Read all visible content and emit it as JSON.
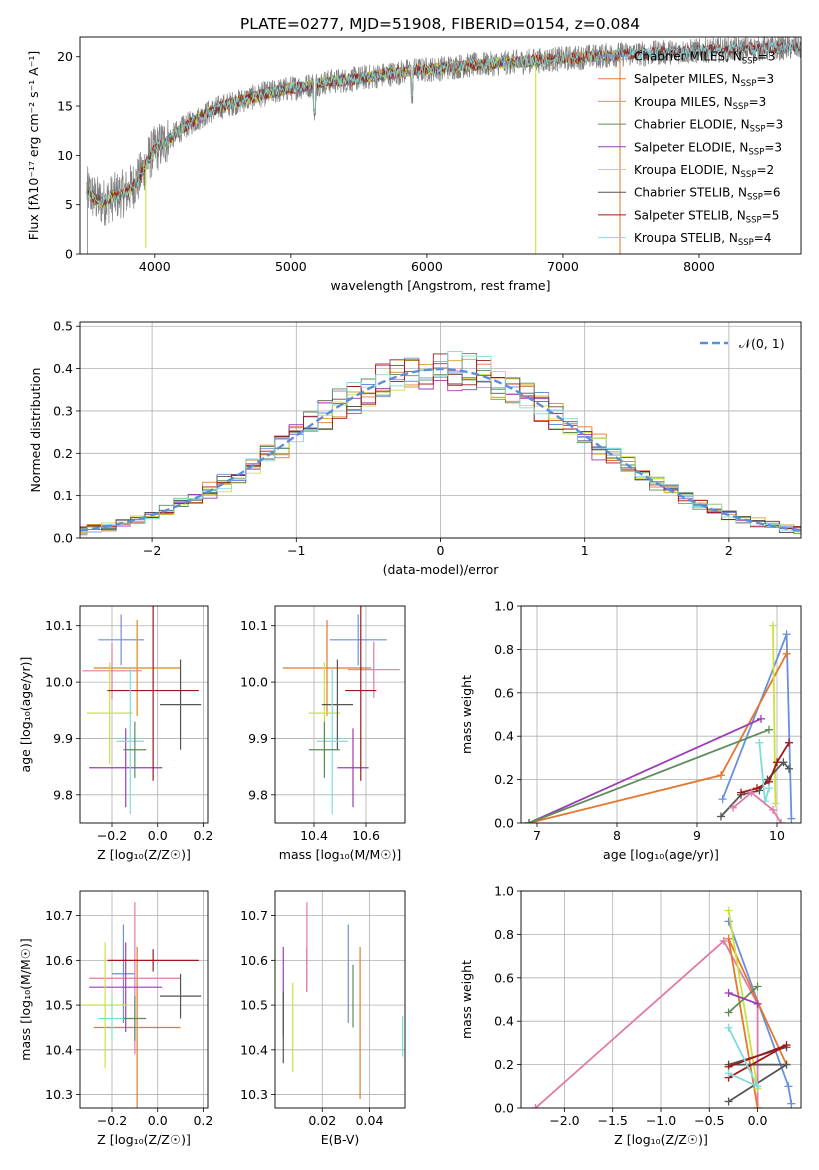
{
  "title": "PLATE=0277, MJD=51908, FIBERID=0154, z=0.084",
  "colors": [
    "#6a8fdc",
    "#e4782e",
    "#d9a02a",
    "#5b8c5a",
    "#9b3db3",
    "#e6e645",
    "#555555",
    "#a01818",
    "#80dcdc"
  ],
  "panel_colors": {
    "chabrier_miles": "#6a8fdc",
    "salpeter_miles": "#e4782e",
    "kroupa_miles": "#d9a02a",
    "chabrier_elodie": "#5b8c5a",
    "salpeter_elodie": "#9b3db3",
    "kroupa_elodie": "#cce23a",
    "chabrier_stelib": "#555555",
    "salpeter_stelib": "#a01818",
    "kroupa_stelib": "#80dcdc",
    "pink": "#e07aa8"
  },
  "legend": [
    {
      "name": "Chabrier MILES",
      "n": "3"
    },
    {
      "name": "Salpeter MILES",
      "n": "3"
    },
    {
      "name": "Kroupa MILES",
      "n": "3"
    },
    {
      "name": "Chabrier ELODIE",
      "n": "3"
    },
    {
      "name": "Salpeter ELODIE",
      "n": "3"
    },
    {
      "name": "Kroupa ELODIE",
      "n": "2"
    },
    {
      "name": "Chabrier STELIB",
      "n": "6"
    },
    {
      "name": "Salpeter STELIB",
      "n": "5"
    },
    {
      "name": "Kroupa STELIB",
      "n": "4"
    }
  ],
  "legend_subscript": "SSP",
  "hist_legend": "𝒩(0, 1)",
  "chart_data": [
    {
      "id": "spectrum",
      "type": "line",
      "xlabel": "wavelength [Angstrom, rest frame]",
      "ylabel": "Flux [fλ10⁻¹⁷ erg cm⁻² s⁻¹ A⁻¹]",
      "xlim": [
        3450,
        8750
      ],
      "ylim": [
        0,
        22
      ],
      "xticks": [
        "4000",
        "5000",
        "6000",
        "7000",
        "8000"
      ],
      "xtick_values": [
        4000,
        5000,
        6000,
        7000,
        8000
      ],
      "yticks": [
        "0",
        "5",
        "10",
        "15",
        "20"
      ],
      "ytick_values": [
        0,
        5,
        10,
        15,
        20
      ],
      "continuum": {
        "x": [
          3500,
          3560,
          3620,
          3700,
          3800,
          3880,
          3960,
          4000,
          4100,
          4200,
          4300,
          4400,
          4500,
          4600,
          4700,
          4800,
          4900,
          5000,
          5100,
          5200,
          5300,
          5400,
          5500,
          5600,
          5700,
          5800,
          5900,
          6000,
          6100,
          6200,
          6300,
          6400,
          6500,
          6600,
          6700,
          6800,
          6900,
          7000,
          7100,
          7200,
          7300,
          7400,
          7500,
          7600,
          7700,
          7800,
          7900,
          8000,
          8200,
          8400,
          8600,
          8750
        ],
        "y": [
          6.5,
          5.6,
          5.2,
          5.8,
          6.3,
          7.6,
          9.8,
          10.6,
          11.6,
          12.7,
          13.6,
          14.4,
          15.0,
          15.4,
          15.8,
          16.2,
          16.5,
          16.8,
          17.0,
          17.3,
          17.5,
          17.6,
          17.8,
          18.0,
          18.2,
          18.4,
          18.6,
          18.7,
          18.8,
          19.0,
          19.1,
          19.2,
          19.3,
          19.4,
          19.5,
          19.6,
          19.7,
          19.8,
          19.9,
          20.0,
          20.1,
          20.2,
          20.3,
          20.3,
          20.4,
          20.5,
          20.5,
          20.6,
          20.7,
          20.8,
          20.9,
          21.0
        ]
      },
      "dips": [
        {
          "x": 3934,
          "to": 0.6,
          "series": "kroupa_elodie"
        },
        {
          "x": 5175,
          "to": 13.5,
          "series": "all"
        },
        {
          "x": 5890,
          "to": 15.2,
          "series": "all"
        },
        {
          "x": 6800,
          "to": 0,
          "series": "kroupa_elodie"
        },
        {
          "x": 7420,
          "to": 0,
          "series": "salpeter_miles"
        }
      ],
      "series": [
        "Chabrier MILES",
        "Salpeter MILES",
        "Kroupa MILES",
        "Chabrier ELODIE",
        "Salpeter ELODIE",
        "Kroupa ELODIE",
        "Chabrier STELIB",
        "Salpeter STELIB",
        "Kroupa STELIB"
      ]
    },
    {
      "id": "residual_hist",
      "type": "bar",
      "xlabel": "(data-model)/error",
      "ylabel": "Normed distribution",
      "xlim": [
        -2.5,
        2.5
      ],
      "ylim": [
        0,
        0.51
      ],
      "xticks": [
        "−2",
        "−1",
        "0",
        "1",
        "2"
      ],
      "xtick_values": [
        -2,
        -1,
        0,
        1,
        2
      ],
      "yticks": [
        "0.0",
        "0.1",
        "0.2",
        "0.3",
        "0.4",
        "0.5"
      ],
      "ytick_values": [
        0,
        0.1,
        0.2,
        0.3,
        0.4,
        0.5
      ],
      "bin_width": 0.1,
      "reference": "Gaussian N(0,1)"
    },
    {
      "id": "age_vs_Z",
      "type": "scatter",
      "xlabel": "Z [log₁₀(Z/Z☉)]",
      "ylabel": "age  [log₁₀(age/yr)]",
      "xlim": [
        -0.34,
        0.22
      ],
      "ylim": [
        9.75,
        10.135
      ],
      "xticks": [
        "−0.2",
        "0.0",
        "0.2"
      ],
      "xtick_values": [
        -0.2,
        0,
        0.2
      ],
      "yticks": [
        "9.8",
        "9.9",
        "10.0",
        "10.1"
      ],
      "ytick_values": [
        9.8,
        9.9,
        10.0,
        10.1
      ],
      "points": [
        {
          "c": "chabrier_miles",
          "x": -0.16,
          "xe": 0.1,
          "y": 10.075,
          "ye": 0.045
        },
        {
          "c": "salpeter_miles",
          "x": -0.09,
          "xe": 0.19,
          "y": 10.025,
          "ye": 0.085
        },
        {
          "c": "kroupa_miles",
          "x": -0.09,
          "xe": 0.19,
          "y": 10.025,
          "ye": 0.085
        },
        {
          "c": "pink",
          "x": -0.2,
          "xe": 0.13,
          "y": 10.02,
          "ye": 0.05
        },
        {
          "c": "salpeter_elodie",
          "x": -0.14,
          "xe": 0.16,
          "y": 9.848,
          "ye": 0.07
        },
        {
          "c": "kroupa_elodie",
          "x": -0.21,
          "xe": 0.1,
          "y": 9.945,
          "ye": 0.09
        },
        {
          "c": "chabrier_stelib",
          "x": 0.1,
          "xe": 0.09,
          "y": 9.96,
          "ye": 0.08
        },
        {
          "c": "salpeter_stelib",
          "x": -0.02,
          "xe": 0.2,
          "y": 9.985,
          "ye": 0.16
        },
        {
          "c": "kroupa_stelib",
          "x": -0.12,
          "xe": 0.06,
          "y": 9.895,
          "ye": 0.13
        },
        {
          "c": "chabrier_elodie",
          "x": -0.1,
          "xe": 0.05,
          "y": 9.88,
          "ye": 0.05
        }
      ]
    },
    {
      "id": "age_vs_mass",
      "type": "scatter",
      "xlabel": "mass [log₁₀(M/M☉)]",
      "ylabel": "",
      "xlim": [
        10.25,
        10.75
      ],
      "ylim": [
        9.75,
        10.135
      ],
      "xticks": [
        "10.4",
        "10.6"
      ],
      "xtick_values": [
        10.4,
        10.6
      ],
      "yticks": [
        "9.8",
        "9.9",
        "10.0",
        "10.1"
      ],
      "ytick_values": [
        9.8,
        9.9,
        10.0,
        10.1
      ],
      "points": [
        {
          "c": "chabrier_miles",
          "x": 10.57,
          "xe": 0.11,
          "y": 10.075,
          "ye": 0.045
        },
        {
          "c": "salpeter_miles",
          "x": 10.45,
          "xe": 0.17,
          "y": 10.025,
          "ye": 0.085
        },
        {
          "c": "pink",
          "x": 10.63,
          "xe": 0.1,
          "y": 10.022,
          "ye": 0.05
        },
        {
          "c": "salpeter_elodie",
          "x": 10.55,
          "xe": 0.06,
          "y": 9.848,
          "ye": 0.07
        },
        {
          "c": "kroupa_elodie",
          "x": 10.44,
          "xe": 0.06,
          "y": 9.945,
          "ye": 0.09
        },
        {
          "c": "chabrier_stelib",
          "x": 10.49,
          "xe": 0.06,
          "y": 9.96,
          "ye": 0.08
        },
        {
          "c": "salpeter_stelib",
          "x": 10.58,
          "xe": 0.06,
          "y": 9.985,
          "ye": 0.16
        },
        {
          "c": "kroupa_stelib",
          "x": 10.47,
          "xe": 0.06,
          "y": 9.895,
          "ye": 0.13
        },
        {
          "c": "chabrier_elodie",
          "x": 10.44,
          "xe": 0.06,
          "y": 9.88,
          "ye": 0.05
        }
      ]
    },
    {
      "id": "massweight_vs_age",
      "type": "line",
      "xlabel": "age  [log₁₀(age/yr)]",
      "ylabel": "mass weight",
      "xlim": [
        6.8,
        10.3
      ],
      "ylim": [
        0,
        1.0
      ],
      "xticks": [
        "7",
        "8",
        "9",
        "10"
      ],
      "xtick_values": [
        7,
        8,
        9,
        10
      ],
      "yticks": [
        "0.0",
        "0.2",
        "0.4",
        "0.6",
        "0.8",
        "1.0"
      ],
      "ytick_values": [
        0,
        0.2,
        0.4,
        0.6,
        0.8,
        1.0
      ],
      "series": [
        {
          "c": "chabrier_miles",
          "x": [
            9.32,
            10.12,
            10.18
          ],
          "y": [
            0.11,
            0.87,
            0.02
          ]
        },
        {
          "c": "salpeter_miles",
          "x": [
            6.9,
            9.3,
            10.12
          ],
          "y": [
            0.0,
            0.22,
            0.78
          ]
        },
        {
          "c": "salpeter_elodie",
          "x": [
            6.9,
            9.8
          ],
          "y": [
            0.0,
            0.48
          ]
        },
        {
          "c": "chabrier_elodie",
          "x": [
            6.9,
            9.9
          ],
          "y": [
            0.0,
            0.43
          ]
        },
        {
          "c": "kroupa_elodie",
          "x": [
            9.95,
            9.98
          ],
          "y": [
            0.91,
            0.09
          ]
        },
        {
          "c": "chabrier_stelib",
          "x": [
            9.3,
            9.55,
            9.78,
            9.88,
            10.08,
            10.15
          ],
          "y": [
            0.03,
            0.13,
            0.15,
            0.2,
            0.28,
            0.25
          ]
        },
        {
          "c": "salpeter_stelib",
          "x": [
            9.55,
            9.75,
            9.9,
            10.0,
            10.15
          ],
          "y": [
            0.14,
            0.16,
            0.19,
            0.28,
            0.37
          ]
        },
        {
          "c": "kroupa_stelib",
          "x": [
            9.78,
            9.85,
            9.9
          ],
          "y": [
            0.37,
            0.1,
            0.16
          ]
        },
        {
          "c": "pink",
          "x": [
            9.45,
            9.68,
            9.95,
            10.05
          ],
          "y": [
            0.07,
            0.14,
            0.06,
            0.0
          ]
        }
      ]
    },
    {
      "id": "mass_vs_Z",
      "type": "scatter",
      "xlabel": "Z [log₁₀(Z/Z☉)]",
      "ylabel": "mass [log₁₀(M/M☉)]",
      "xlim": [
        -0.34,
        0.22
      ],
      "ylim": [
        10.27,
        10.755
      ],
      "xticks": [
        "−0.2",
        "0.0",
        "0.2"
      ],
      "xtick_values": [
        -0.2,
        0,
        0.2
      ],
      "yticks": [
        "10.3",
        "10.4",
        "10.5",
        "10.6",
        "10.7"
      ],
      "ytick_values": [
        10.3,
        10.4,
        10.5,
        10.6,
        10.7
      ],
      "points": [
        {
          "c": "chabrier_miles",
          "x": -0.15,
          "xe": 0.05,
          "y": 10.57,
          "ye": 0.11
        },
        {
          "c": "salpeter_miles",
          "x": -0.09,
          "xe": 0.19,
          "y": 10.45,
          "ye": 0.18
        },
        {
          "c": "pink",
          "x": -0.1,
          "xe": 0.2,
          "y": 10.56,
          "ye": 0.17
        },
        {
          "c": "salpeter_elodie",
          "x": -0.14,
          "xe": 0.16,
          "y": 10.54,
          "ye": 0.1
        },
        {
          "c": "kroupa_elodie",
          "x": -0.23,
          "xe": 0.1,
          "y": 10.5,
          "ye": 0.14
        },
        {
          "c": "chabrier_stelib",
          "x": 0.1,
          "xe": 0.09,
          "y": 10.52,
          "ye": 0.05
        },
        {
          "c": "salpeter_stelib",
          "x": -0.02,
          "xe": 0.2,
          "y": 10.6,
          "ye": 0.025
        },
        {
          "c": "kroupa_stelib",
          "x": -0.2,
          "xe": 0.06,
          "y": 10.47,
          "ye": 0.05
        },
        {
          "c": "chabrier_elodie",
          "x": -0.1,
          "xe": 0.05,
          "y": 10.47,
          "ye": 0.05
        }
      ]
    },
    {
      "id": "mass_vs_ebv",
      "type": "scatter",
      "xlabel": "E(B-V)",
      "ylabel": "",
      "xlim": [
        0.0,
        0.055
      ],
      "ylim": [
        10.27,
        10.755
      ],
      "xticks": [
        "0.02",
        "0.04"
      ],
      "xtick_values": [
        0.02,
        0.04
      ],
      "yticks": [
        "10.3",
        "10.4",
        "10.5",
        "10.6",
        "10.7"
      ],
      "ytick_values": [
        10.3,
        10.4,
        10.5,
        10.6,
        10.7
      ],
      "points": [
        {
          "c": "chabrier_miles",
          "x": 0.031,
          "y": 10.57,
          "ye": 0.11
        },
        {
          "c": "salpeter_miles",
          "x": 0.036,
          "y": 10.46,
          "ye": 0.17
        },
        {
          "c": "salpeter_elodie",
          "x": 0.0035,
          "y": 10.53,
          "ye": 0.1
        },
        {
          "c": "kroupa_elodie",
          "x": 0.0075,
          "y": 10.45,
          "ye": 0.1
        },
        {
          "c": "chabrier_stelib",
          "x": 0.0035,
          "y": 10.45,
          "ye": 0.08
        },
        {
          "c": "salpeter_stelib",
          "x": 0.0135,
          "y": 10.58,
          "ye": 0.05
        },
        {
          "c": "pink",
          "x": 0.0135,
          "y": 10.63,
          "ye": 0.1
        },
        {
          "c": "chabrier_elodie",
          "x": 0.033,
          "y": 10.52,
          "ye": 0.07
        },
        {
          "c": "kroupa_stelib",
          "x": 0.054,
          "y": 10.43,
          "ye": 0.045
        }
      ]
    },
    {
      "id": "massweight_vs_Z",
      "type": "line",
      "xlabel": "Z [log₁₀(Z/Z☉)]",
      "ylabel": "mass weight",
      "xlim": [
        -2.45,
        0.45
      ],
      "ylim": [
        0,
        1.0
      ],
      "xticks": [
        "−2.0",
        "−1.5",
        "−1.0",
        "−0.5",
        "0.0"
      ],
      "xtick_values": [
        -2,
        -1.5,
        -1,
        -0.5,
        0
      ],
      "yticks": [
        "0.0",
        "0.2",
        "0.4",
        "0.6",
        "0.8",
        "1.0"
      ],
      "ytick_values": [
        0,
        0.2,
        0.4,
        0.6,
        0.8,
        1.0
      ],
      "series": [
        {
          "c": "pink",
          "x": [
            -2.3,
            -0.35,
            0.0,
            0.0
          ],
          "y": [
            0.0,
            0.77,
            0.48,
            0.0
          ]
        },
        {
          "c": "chabrier_miles",
          "x": [
            -0.3,
            0.32,
            0.35
          ],
          "y": [
            0.86,
            0.1,
            0.02
          ]
        },
        {
          "c": "salpeter_miles",
          "x": [
            0.0,
            -0.3,
            0.3
          ],
          "y": [
            0.0,
            0.78,
            0.2
          ]
        },
        {
          "c": "kroupa_elodie",
          "x": [
            -0.3,
            0.0
          ],
          "y": [
            0.91,
            0.09
          ]
        },
        {
          "c": "chabrier_elodie",
          "x": [
            -0.3,
            0.0
          ],
          "y": [
            0.44,
            0.56
          ]
        },
        {
          "c": "salpeter_elodie",
          "x": [
            -0.3,
            0.0
          ],
          "y": [
            0.53,
            0.48
          ]
        },
        {
          "c": "chabrier_stelib",
          "x": [
            -0.3,
            0.3,
            -0.3,
            0.3
          ],
          "y": [
            0.03,
            0.2,
            0.2,
            0.28
          ]
        },
        {
          "c": "salpeter_stelib",
          "x": [
            -0.3,
            0.3,
            -0.3
          ],
          "y": [
            0.14,
            0.29,
            0.19
          ]
        },
        {
          "c": "kroupa_stelib",
          "x": [
            -0.3,
            0.0,
            -0.3
          ],
          "y": [
            0.37,
            0.1,
            0.16
          ]
        }
      ]
    }
  ]
}
